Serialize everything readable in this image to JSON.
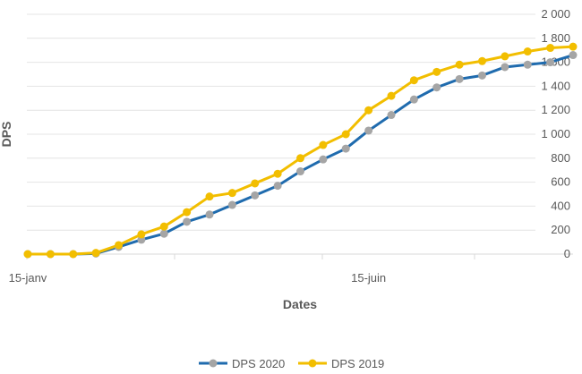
{
  "chart_data": {
    "type": "line",
    "xlabel": "Dates",
    "ylabel": "DPS",
    "ylim": [
      0,
      2000
    ],
    "yticks": [
      0,
      200,
      400,
      600,
      800,
      1000,
      1200,
      1400,
      1600,
      1800,
      2000
    ],
    "ytick_labels": [
      "0",
      "200",
      "400",
      "600",
      "800",
      "1 000",
      "1 200",
      "1 400",
      "1 600",
      "1 800",
      "2 000"
    ],
    "x_tick_labels": [
      {
        "label": "15-janv",
        "index": 0
      },
      {
        "label": "15-juin",
        "index": 15
      }
    ],
    "y_axis_position": "right",
    "grid": true,
    "legend_position": "bottom",
    "series": [
      {
        "name": "DPS 2020",
        "line_color": "#1F6BAE",
        "marker_color": "#A5A5A5",
        "values": [
          0,
          0,
          0,
          5,
          60,
          120,
          170,
          270,
          330,
          410,
          490,
          570,
          690,
          790,
          880,
          1030,
          1160,
          1290,
          1390,
          1460,
          1490,
          1560,
          1580,
          1600,
          1660
        ]
      },
      {
        "name": "DPS 2019",
        "line_color": "#F2BE00",
        "marker_color": "#F2BE00",
        "values": [
          0,
          0,
          0,
          10,
          75,
          165,
          230,
          350,
          480,
          510,
          590,
          670,
          800,
          910,
          1000,
          1200,
          1320,
          1450,
          1520,
          1580,
          1610,
          1650,
          1690,
          1720,
          1730
        ]
      }
    ]
  }
}
